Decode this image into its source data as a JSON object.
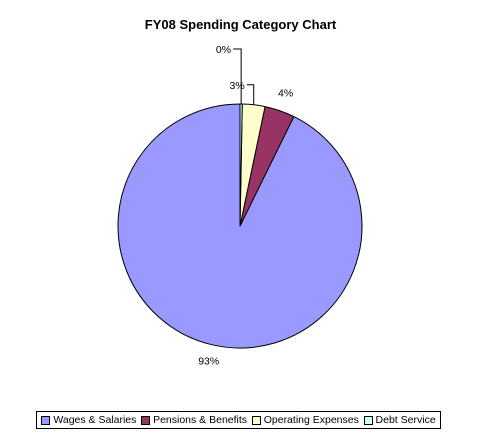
{
  "chart_data": {
    "type": "pie",
    "title": "FY08 Spending Category Chart",
    "categories": [
      "Wages & Salaries",
      "Pensions & Benefits",
      "Operating Expenses",
      "Debt Service"
    ],
    "values": [
      93,
      4,
      3,
      0.3
    ],
    "labels": [
      "93%",
      "4%",
      "3%",
      "0%"
    ],
    "colors": [
      "#9999FF",
      "#993366",
      "#FFFFCC",
      "#CCFFFF"
    ],
    "legend_position": "bottom",
    "start_angle": "12 o'clock",
    "direction": "counterclockwise"
  }
}
